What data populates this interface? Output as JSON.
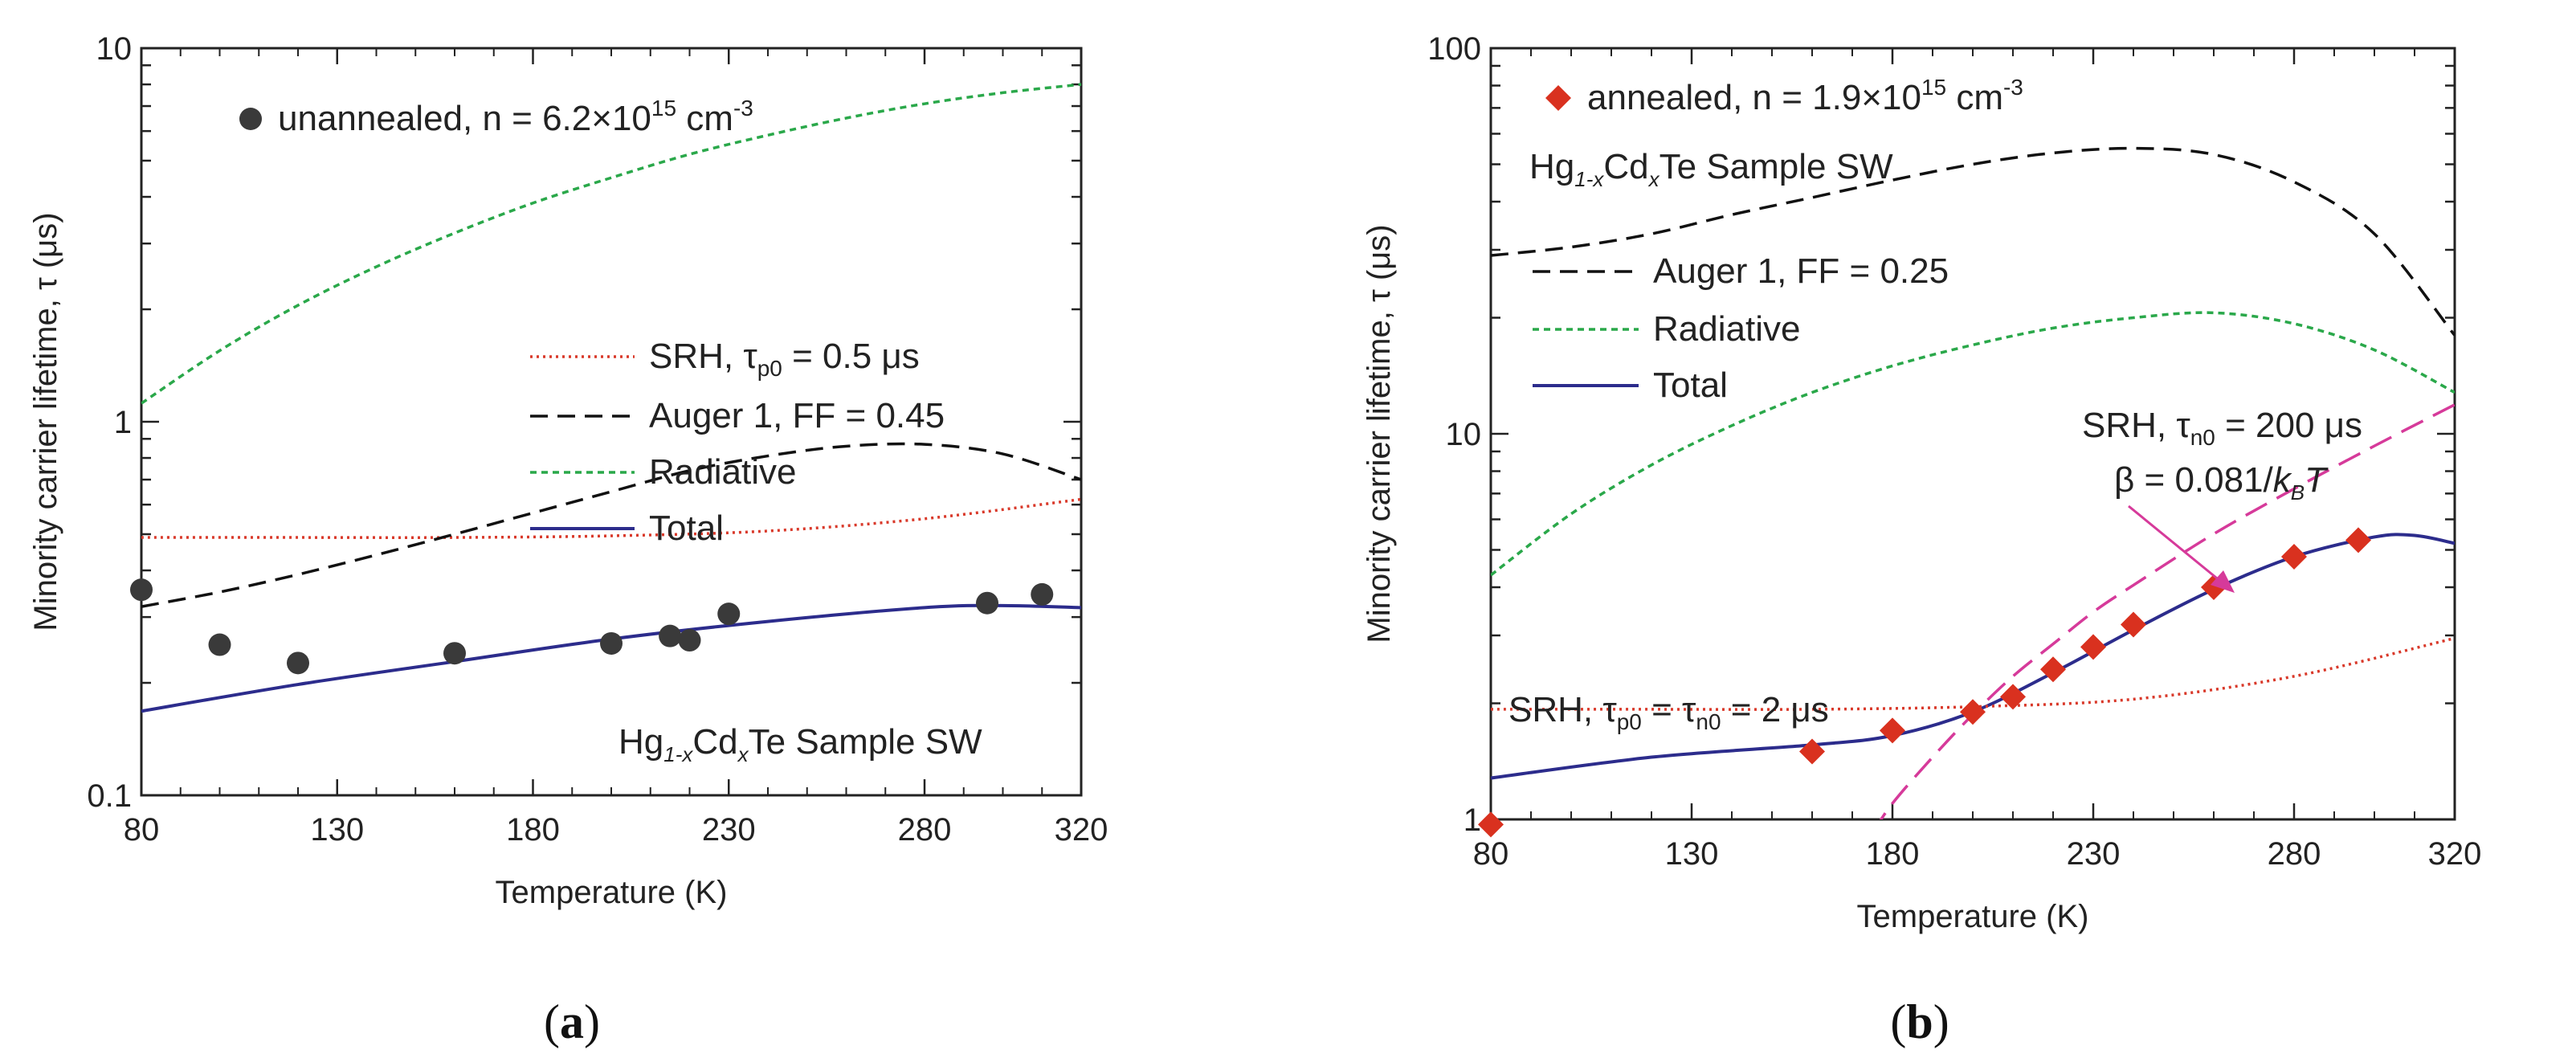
{
  "chart_data": [
    {
      "id": "a",
      "type": "line",
      "caption_open": "(",
      "caption_letter": "a",
      "caption_close": ")",
      "xlabel": "Temperature (K)",
      "ylabel": "Minority carrier lifetime, τ (μs)",
      "xlim": [
        80,
        320
      ],
      "ylim": [
        0.1,
        10
      ],
      "yscale": "log",
      "grid": false,
      "legend_position": "top-right",
      "x_ticks": [
        80,
        130,
        180,
        230,
        280,
        320
      ],
      "y_tick_labels": [
        {
          "v": 0.1,
          "t": "0.1"
        },
        {
          "v": 1,
          "t": "1"
        },
        {
          "v": 10,
          "t": "10"
        }
      ],
      "annotations": [
        {
          "id": "sample-label",
          "text": "Hg",
          "sub1": "1-x",
          "mid": "Cd",
          "sub2": "x",
          "tail": "Te Sample SW",
          "x": 160,
          "y": 0.148
        }
      ],
      "markers": {
        "name": "unannealed, n = 6.2×10",
        "sup": "15",
        "unit": " cm",
        "unit_sup": "-3",
        "color": "#3a3a3a",
        "shape": "circle",
        "points": [
          {
            "x": 80,
            "y": 0.355
          },
          {
            "x": 100,
            "y": 0.253
          },
          {
            "x": 120,
            "y": 0.226
          },
          {
            "x": 160,
            "y": 0.24
          },
          {
            "x": 200,
            "y": 0.255
          },
          {
            "x": 215,
            "y": 0.267
          },
          {
            "x": 220,
            "y": 0.26
          },
          {
            "x": 230,
            "y": 0.306
          },
          {
            "x": 296,
            "y": 0.327
          },
          {
            "x": 310,
            "y": 0.345
          }
        ]
      },
      "series": [
        {
          "id": "srh",
          "name": "SRH, τ",
          "sub": "p0",
          "tail": " = 0.5 μs",
          "color": "#d9392a",
          "style": "dotted",
          "x": [
            80,
            120,
            160,
            200,
            240,
            280,
            320
          ],
          "y": [
            0.49,
            0.49,
            0.49,
            0.495,
            0.51,
            0.55,
            0.62
          ]
        },
        {
          "id": "auger",
          "name": "Auger 1, FF = 0.45",
          "color": "#111111",
          "style": "dashed",
          "x": [
            80,
            100,
            120,
            140,
            160,
            180,
            200,
            220,
            240,
            260,
            280,
            300,
            320
          ],
          "y": [
            0.32,
            0.35,
            0.39,
            0.44,
            0.5,
            0.57,
            0.65,
            0.74,
            0.81,
            0.86,
            0.87,
            0.82,
            0.7
          ]
        },
        {
          "id": "radiative",
          "name": "Radiative",
          "color": "#2aa84a",
          "style": "shortdash",
          "x": [
            80,
            100,
            120,
            140,
            160,
            180,
            200,
            220,
            240,
            260,
            280,
            300,
            320
          ],
          "y": [
            1.12,
            1.55,
            2.05,
            2.6,
            3.2,
            3.85,
            4.5,
            5.2,
            5.85,
            6.5,
            7.1,
            7.6,
            8.0
          ]
        },
        {
          "id": "total",
          "name": "Total",
          "color": "#2c2c8c",
          "style": "solid",
          "x": [
            80,
            120,
            160,
            200,
            240,
            280,
            300,
            320
          ],
          "y": [
            0.168,
            0.198,
            0.228,
            0.262,
            0.292,
            0.318,
            0.322,
            0.318
          ]
        }
      ]
    },
    {
      "id": "b",
      "type": "line",
      "caption_open": "(",
      "caption_letter": "b",
      "caption_close": ")",
      "xlabel": "Temperature (K)",
      "ylabel": "Minority carrier lifetime, τ (μs)",
      "xlim": [
        80,
        320
      ],
      "ylim": [
        1,
        100
      ],
      "yscale": "log",
      "grid": false,
      "legend_position": "top-left",
      "x_ticks": [
        80,
        130,
        180,
        230,
        280,
        320
      ],
      "y_tick_labels": [
        {
          "v": 1,
          "t": "1"
        },
        {
          "v": 10,
          "t": "10"
        },
        {
          "v": 100,
          "t": "100"
        }
      ],
      "annotations": [
        {
          "id": "sample-label",
          "text": "Hg",
          "sub1": "1-x",
          "mid": "Cd",
          "sub2": "x",
          "tail": "Te Sample SW",
          "x": 83,
          "y": 46
        }
      ],
      "srh_labels": {
        "left_name": "SRH, τ",
        "left_sub1": "p0",
        "left_mid": " = τ",
        "left_sub2": "n0",
        "left_tail": " = 2 μs",
        "right_name": "SRH, τ",
        "right_sub": "n0",
        "right_tail": " = 200 μs",
        "beta_text": "β = 0.081/",
        "beta_k": "k",
        "beta_b": "B",
        "beta_t": "T"
      },
      "markers": {
        "name": "annealed, n = 1.9×10",
        "sup": "15",
        "unit": " cm",
        "unit_sup": "-3",
        "color": "#d9311f",
        "shape": "diamond",
        "points": [
          {
            "x": 80,
            "y": 0.97
          },
          {
            "x": 160,
            "y": 1.5
          },
          {
            "x": 180,
            "y": 1.7
          },
          {
            "x": 200,
            "y": 1.9
          },
          {
            "x": 210,
            "y": 2.08
          },
          {
            "x": 220,
            "y": 2.45
          },
          {
            "x": 230,
            "y": 2.8
          },
          {
            "x": 240,
            "y": 3.2
          },
          {
            "x": 260,
            "y": 4.0
          },
          {
            "x": 280,
            "y": 4.8
          },
          {
            "x": 296,
            "y": 5.3
          }
        ]
      },
      "series": [
        {
          "id": "auger",
          "name": "Auger 1, FF = 0.25",
          "color": "#111111",
          "style": "dashed",
          "x": [
            80,
            100,
            120,
            140,
            160,
            180,
            200,
            220,
            240,
            260,
            280,
            300,
            320
          ],
          "y": [
            29,
            30.5,
            33,
            37,
            41,
            45.5,
            50,
            53.5,
            55,
            53,
            45,
            33,
            18
          ]
        },
        {
          "id": "radiative",
          "name": "Radiative",
          "color": "#2aa84a",
          "style": "shortdash",
          "x": [
            80,
            100,
            120,
            140,
            160,
            180,
            200,
            220,
            240,
            260,
            280,
            300,
            320
          ],
          "y": [
            4.3,
            6.2,
            8.3,
            10.5,
            12.8,
            15.0,
            17.0,
            18.8,
            20.0,
            20.6,
            19.3,
            16.5,
            12.8
          ]
        },
        {
          "id": "total",
          "name": "Total",
          "color": "#2c2c8c",
          "style": "solid",
          "x": [
            80,
            120,
            160,
            180,
            200,
            220,
            240,
            260,
            280,
            300,
            310,
            320
          ],
          "y": [
            1.28,
            1.45,
            1.56,
            1.65,
            1.9,
            2.4,
            3.1,
            3.95,
            4.8,
            5.4,
            5.45,
            5.2
          ]
        },
        {
          "id": "srh-tau-p0",
          "name": "SRH, τp0 = τn0 = 2 μs",
          "color": "#d9392a",
          "style": "dotted",
          "legend": false,
          "x": [
            80,
            120,
            160,
            200,
            240,
            280,
            320
          ],
          "y": [
            1.93,
            1.93,
            1.93,
            1.96,
            2.05,
            2.35,
            2.95
          ]
        },
        {
          "id": "srh-tau-n0",
          "name": "SRH, τn0 = 200 μs",
          "color": "#d63a9a",
          "style": "longdash",
          "legend": false,
          "x": [
            175,
            180,
            190,
            200,
            210,
            220,
            230,
            240,
            260,
            280,
            300,
            320
          ],
          "y": [
            0.92,
            1.1,
            1.45,
            1.87,
            2.35,
            2.85,
            3.45,
            4.05,
            5.5,
            7.2,
            9.3,
            11.9
          ]
        }
      ]
    }
  ]
}
